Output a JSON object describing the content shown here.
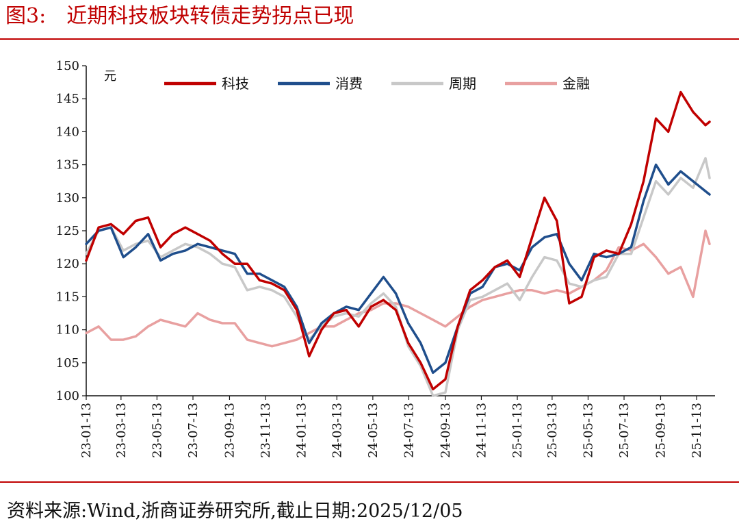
{
  "figure_label": "图3:",
  "title": "近期科技板块转债走势拐点已现",
  "source": "资料来源:Wind,浙商证券研究所,截止日期:2025/12/05",
  "chart_data": {
    "type": "line",
    "ylabel": "元",
    "ylim": [
      100,
      150
    ],
    "yticks": [
      "100",
      "105",
      "110",
      "115",
      "120",
      "125",
      "130",
      "135",
      "140",
      "145",
      "150"
    ],
    "xtick_labels": [
      "23-01-13",
      "23-03-13",
      "23-05-13",
      "23-07-13",
      "23-09-13",
      "23-11-13",
      "24-01-13",
      "24-03-13",
      "24-05-13",
      "24-07-13",
      "24-09-13",
      "24-11-13",
      "25-01-13",
      "25-03-13",
      "25-05-13",
      "25-07-13",
      "25-09-13",
      "25-11-13"
    ],
    "x": [
      "2023-01-13",
      "2023-02-03",
      "2023-02-24",
      "2023-03-17",
      "2023-04-07",
      "2023-04-28",
      "2023-05-19",
      "2023-06-09",
      "2023-06-30",
      "2023-07-21",
      "2023-08-11",
      "2023-09-01",
      "2023-09-22",
      "2023-10-13",
      "2023-11-03",
      "2023-11-24",
      "2023-12-15",
      "2024-01-05",
      "2024-01-26",
      "2024-02-16",
      "2024-03-08",
      "2024-03-29",
      "2024-04-19",
      "2024-05-10",
      "2024-05-31",
      "2024-06-21",
      "2024-07-12",
      "2024-08-02",
      "2024-08-23",
      "2024-09-13",
      "2024-10-04",
      "2024-10-25",
      "2024-11-15",
      "2024-12-06",
      "2024-12-27",
      "2025-01-17",
      "2025-02-07",
      "2025-02-28",
      "2025-03-21",
      "2025-04-11",
      "2025-05-02",
      "2025-05-23",
      "2025-06-13",
      "2025-07-04",
      "2025-07-25",
      "2025-08-15",
      "2025-09-05",
      "2025-09-26",
      "2025-10-17",
      "2025-11-07",
      "2025-11-28",
      "2025-12-05"
    ],
    "series": [
      {
        "name": "科技",
        "color": "#c00000",
        "values": [
          120.5,
          125.5,
          126.0,
          124.5,
          126.5,
          127.0,
          122.5,
          124.5,
          125.5,
          124.5,
          123.5,
          121.5,
          120.0,
          120.0,
          117.5,
          117.0,
          116.0,
          113.0,
          106.0,
          110.0,
          112.5,
          113.0,
          110.5,
          113.5,
          114.5,
          113.0,
          108.0,
          105.0,
          101.0,
          102.5,
          110.5,
          116.0,
          117.5,
          119.5,
          120.5,
          118.0,
          124.0,
          130.0,
          126.5,
          114.0,
          115.0,
          121.0,
          122.0,
          121.5,
          126.0,
          132.5,
          142.0,
          140.0,
          146.0,
          143.0,
          141.0,
          141.5
        ]
      },
      {
        "name": "消费",
        "color": "#1f4e8c",
        "values": [
          123.0,
          125.0,
          125.5,
          121.0,
          122.5,
          124.5,
          120.5,
          121.5,
          122.0,
          123.0,
          122.5,
          122.0,
          121.5,
          118.5,
          118.5,
          117.5,
          116.5,
          113.5,
          108.0,
          111.0,
          112.5,
          113.5,
          113.0,
          115.5,
          118.0,
          115.5,
          111.0,
          108.0,
          103.5,
          105.0,
          110.5,
          115.5,
          116.5,
          119.5,
          120.0,
          119.0,
          122.5,
          124.0,
          124.5,
          120.0,
          117.5,
          121.5,
          121.0,
          121.5,
          122.5,
          129.5,
          135.0,
          132.0,
          134.0,
          132.5,
          131.0,
          130.5
        ]
      },
      {
        "name": "周期",
        "color": "#c8c8c8",
        "values": [
          121.5,
          125.0,
          125.5,
          122.0,
          123.0,
          123.5,
          121.0,
          122.0,
          123.0,
          122.5,
          121.5,
          120.0,
          119.5,
          116.0,
          116.5,
          116.0,
          115.0,
          112.0,
          108.5,
          110.5,
          112.0,
          112.5,
          112.0,
          114.0,
          115.5,
          113.5,
          107.5,
          104.5,
          100.0,
          100.5,
          110.0,
          114.5,
          115.0,
          116.0,
          117.0,
          114.5,
          118.0,
          121.0,
          120.5,
          117.0,
          116.5,
          117.5,
          118.0,
          121.5,
          121.5,
          127.0,
          132.5,
          130.5,
          133.0,
          131.5,
          136.0,
          133.0
        ]
      },
      {
        "name": "金融",
        "color": "#e8a0a0",
        "values": [
          109.5,
          110.5,
          108.5,
          108.5,
          109.0,
          110.5,
          111.5,
          111.0,
          110.5,
          112.5,
          111.5,
          111.0,
          111.0,
          108.5,
          108.0,
          107.5,
          108.0,
          108.5,
          109.5,
          110.5,
          110.5,
          111.5,
          112.5,
          113.0,
          114.0,
          114.0,
          113.5,
          112.5,
          111.5,
          110.5,
          112.0,
          113.5,
          114.5,
          115.0,
          115.5,
          116.0,
          116.0,
          115.5,
          116.0,
          115.5,
          116.5,
          117.5,
          119.0,
          122.5,
          122.0,
          123.0,
          121.0,
          118.5,
          119.5,
          115.0,
          125.0,
          123.0
        ]
      }
    ]
  }
}
